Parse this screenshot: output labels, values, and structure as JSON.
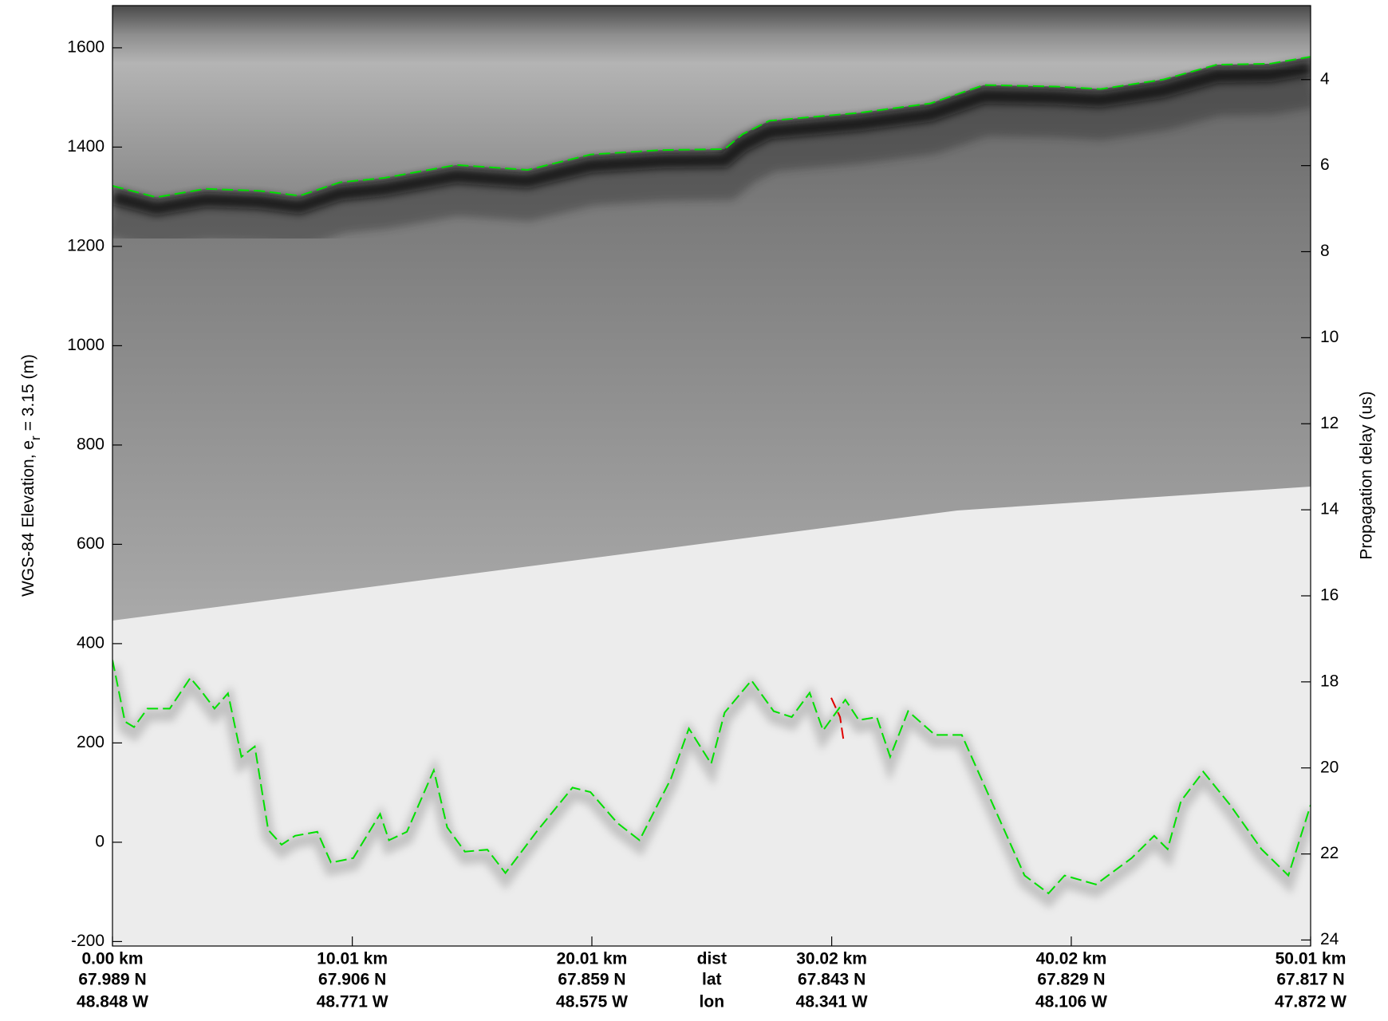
{
  "chart_data": {
    "type": "line",
    "ylabel": "WGS-84 Elevation, e",
    "ylabel_subscript": "r",
    "ylabel_suffix": "= 3.15 (m)",
    "y2label": "Propagation delay (us)",
    "xlim": [
      0,
      50.01
    ],
    "ylim": [
      -209,
      1685
    ],
    "yticks": [
      -200,
      0,
      200,
      400,
      600,
      800,
      1000,
      1200,
      1400,
      1600
    ],
    "y2lim": [
      24.14,
      2.28
    ],
    "y2ticks": [
      4,
      6,
      8,
      10,
      12,
      14,
      16,
      18,
      20,
      22,
      24
    ],
    "xticks": [
      {
        "value": 0,
        "label": "0.00 km"
      },
      {
        "value": 10.01,
        "label": "10.01 km"
      },
      {
        "value": 20.01,
        "label": "20.01 km"
      },
      {
        "value": 30.02,
        "label": "30.02 km"
      },
      {
        "value": 40.02,
        "label": "40.02 km"
      },
      {
        "value": 50.01,
        "label": "50.01 km"
      }
    ],
    "lat_labels": [
      "67.989 N",
      "67.906 N",
      "67.859 N",
      "67.843 N",
      "67.829 N",
      "67.817 N"
    ],
    "lon_labels": [
      "48.848 W",
      "48.771 W",
      "48.575 W",
      "48.341 W",
      "48.106 W",
      "47.872 W"
    ],
    "row_names": [
      "dist",
      "lat",
      "lon"
    ],
    "series": [
      {
        "color": "#00e000",
        "x": [
          0,
          1.83,
          3.88,
          6.13,
          7.81,
          9.49,
          11.35,
          14.34,
          17.33,
          19.95,
          22.93,
          25.55,
          26.3,
          27.42,
          31.15,
          34.14,
          36.38,
          39.37,
          41.24,
          43.85,
          46.09,
          48.33,
          50.01
        ],
        "values": [
          1322,
          1299,
          1316,
          1312,
          1302,
          1329,
          1338,
          1364,
          1354,
          1385,
          1394,
          1396,
          1426,
          1453,
          1469,
          1488,
          1525,
          1522,
          1517,
          1536,
          1566,
          1568,
          1582
        ]
      },
      {
        "color": "#00e000",
        "x": [
          0,
          0.52,
          0.9,
          1.46,
          2.39,
          3.25,
          3.7,
          4.26,
          4.82,
          5.38,
          5.94,
          6.5,
          7.06,
          7.62,
          8.55,
          9.12,
          10.05,
          11.17,
          11.54,
          12.29,
          13.41,
          13.97,
          14.71,
          15.65,
          16.4,
          17.7,
          19.2,
          19.95,
          21.07,
          22.0,
          23.31,
          24.06,
          24.99,
          25.55,
          26.67,
          27.6,
          28.35,
          29.1,
          29.66,
          30.59,
          31.15,
          31.9,
          32.46,
          33.21,
          34.33,
          35.45,
          38.07,
          39.07,
          39.74,
          41.05,
          42.54,
          43.48,
          44.04,
          44.6,
          45.53,
          46.65,
          47.96,
          49.08,
          50.01
        ],
        "values": [
          367,
          243,
          232,
          269,
          269,
          331,
          305,
          269,
          300,
          172,
          193,
          25,
          -5,
          13,
          21,
          -41,
          -32,
          57,
          4,
          21,
          145,
          30,
          -19,
          -15,
          -62,
          21,
          110,
          101,
          39,
          4,
          128,
          229,
          158,
          261,
          326,
          264,
          252,
          301,
          225,
          287,
          246,
          252,
          172,
          264,
          216,
          216,
          -67,
          -103,
          -67,
          -85,
          -32,
          13,
          -14,
          83,
          142,
          75,
          -14,
          -67,
          75
        ]
      },
      {
        "color": "#e00000",
        "x": [
          30.0,
          30.37,
          30.51
        ],
        "values": [
          291,
          252,
          207
        ]
      }
    ]
  }
}
